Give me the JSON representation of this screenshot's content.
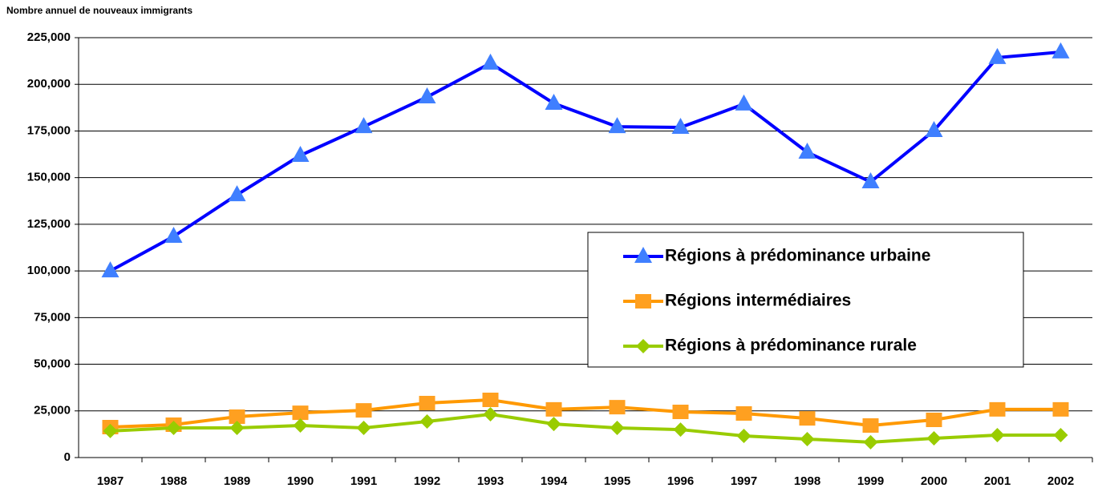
{
  "chart_data": {
    "type": "line",
    "y_axis_title": "Nombre annuel de nouveaux immigrants",
    "categories": [
      "1987",
      "1988",
      "1989",
      "1990",
      "1991",
      "1992",
      "1993",
      "1994",
      "1995",
      "1996",
      "1997",
      "1998",
      "1999",
      "2000",
      "2001",
      "2002"
    ],
    "series": [
      {
        "name": "Régions à prédominance urbaine",
        "color": "#0000ff",
        "marker_color": "#3f7fff",
        "marker": "triangle",
        "values": [
          100000,
          118500,
          140800,
          161900,
          177300,
          193200,
          211300,
          189800,
          177300,
          176900,
          189400,
          163600,
          147700,
          175200,
          214300,
          217300
        ]
      },
      {
        "name": "Régions intermédiaires",
        "color": "#ff9900",
        "marker_color": "#ffa020",
        "marker": "square",
        "values": [
          16300,
          17600,
          21900,
          24000,
          25300,
          29200,
          30900,
          25800,
          27000,
          24500,
          23600,
          21000,
          17200,
          20200,
          25800,
          25800
        ]
      },
      {
        "name": "Régions à prédominance rurale",
        "color": "#99cc00",
        "marker_color": "#99cc00",
        "marker": "diamond",
        "values": [
          14200,
          15900,
          15900,
          17200,
          15900,
          19300,
          23200,
          18000,
          15900,
          15000,
          11600,
          9900,
          8200,
          10300,
          12000,
          12000
        ]
      }
    ],
    "ylim": [
      0,
      225000
    ],
    "yticks": [
      0,
      {
        "value": 25000,
        "label": "25,000"
      },
      {
        "value": 50000,
        "label": "50,000"
      },
      {
        "value": 75000,
        "label": "75,000"
      },
      {
        "value": 100000,
        "label": "100,000"
      },
      {
        "value": 125000,
        "label": "125,000"
      },
      {
        "value": 150000,
        "label": "150,000"
      },
      {
        "value": 175000,
        "label": "175,000"
      },
      {
        "value": 200000,
        "label": "200,000"
      },
      {
        "value": 225000,
        "label": "225,000"
      }
    ],
    "grid": true,
    "legend": "right"
  }
}
